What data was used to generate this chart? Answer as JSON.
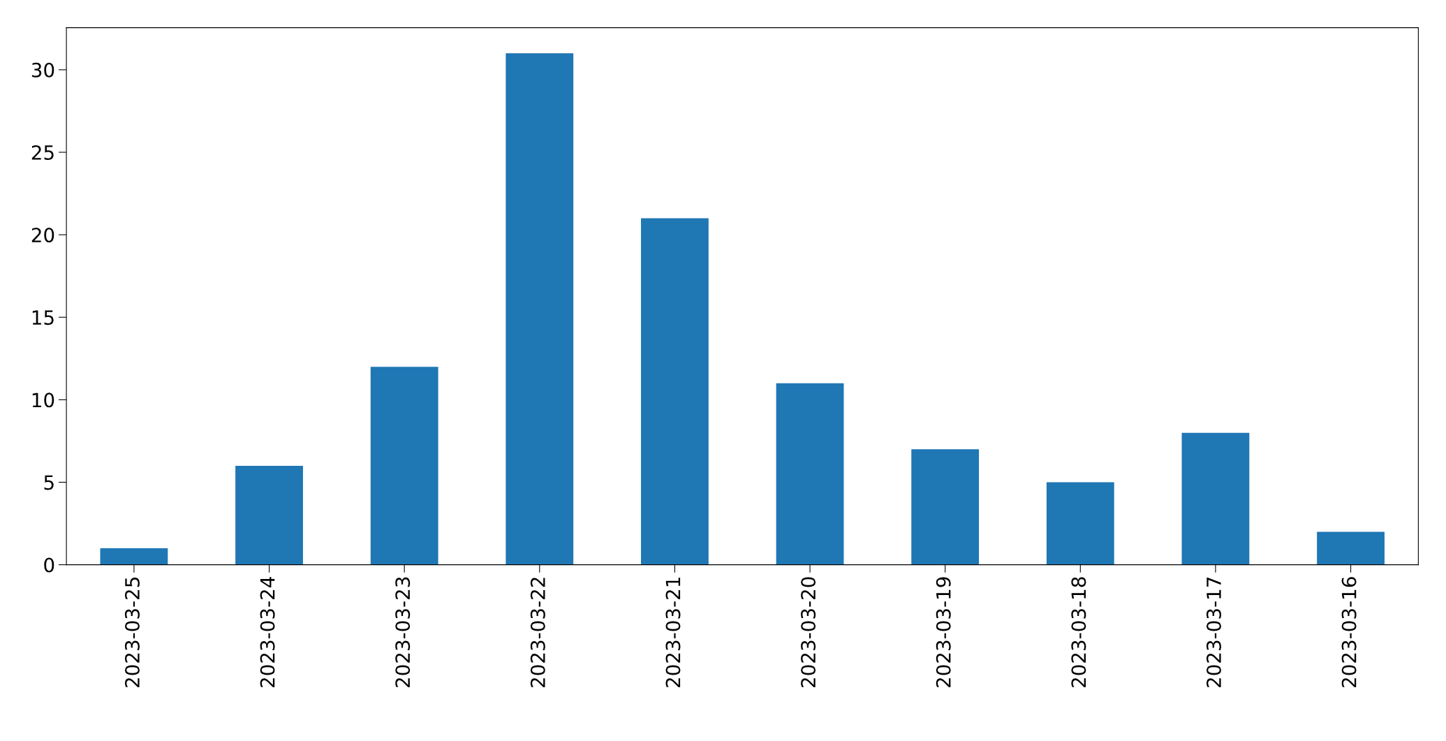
{
  "chart_data": {
    "type": "bar",
    "categories": [
      "2023-03-25",
      "2023-03-24",
      "2023-03-23",
      "2023-03-22",
      "2023-03-21",
      "2023-03-20",
      "2023-03-19",
      "2023-03-18",
      "2023-03-17",
      "2023-03-16"
    ],
    "values": [
      1,
      6,
      12,
      31,
      21,
      11,
      7,
      5,
      8,
      2
    ],
    "color": "#1f77b4",
    "ylim": [
      0,
      32.55
    ],
    "yticks": [
      0,
      5,
      10,
      15,
      20,
      25,
      30
    ],
    "grid": false,
    "legend": false
  }
}
